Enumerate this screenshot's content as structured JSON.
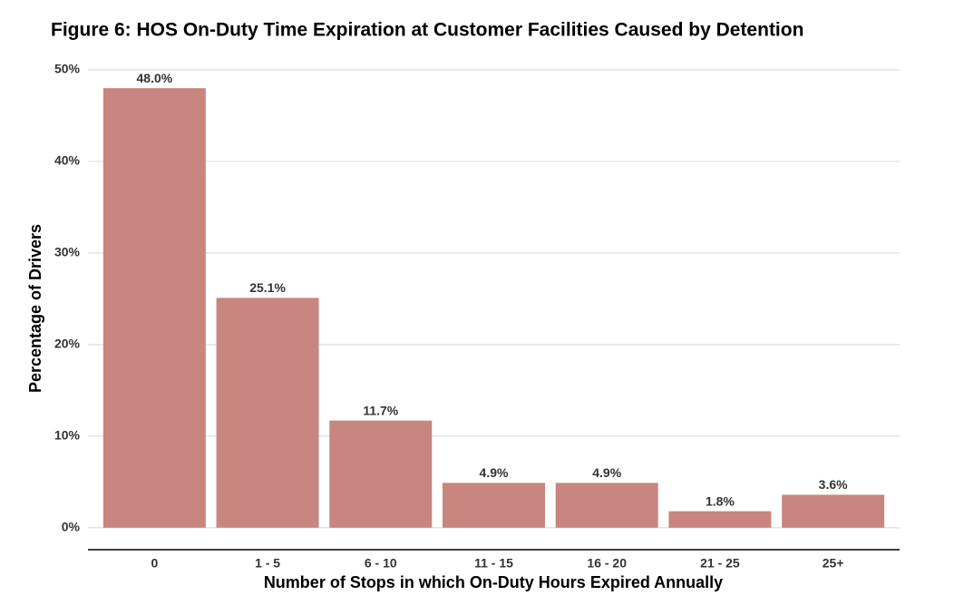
{
  "chart_data": {
    "type": "bar",
    "title": "Figure 6: HOS On-Duty Time Expiration at Customer Facilities Caused by Detention",
    "x_label": "Number of Stops in which On-Duty Hours Expired Annually",
    "y_label": "Percentage of Drivers",
    "categories": [
      "0",
      "1 - 5",
      "6 - 10",
      "11 - 15",
      "16 - 20",
      "21 - 25",
      "25+"
    ],
    "values": [
      48.0,
      25.1,
      11.7,
      4.9,
      4.9,
      1.8,
      3.6
    ],
    "value_labels": [
      "48.0%",
      "25.1%",
      "11.7%",
      "4.9%",
      "4.9%",
      "1.8%",
      "3.6%"
    ],
    "color": "#c98580",
    "ylim": [
      -2.4,
      50
    ],
    "yticks": [
      {
        "value": 0,
        "label": "0%"
      },
      {
        "value": 10,
        "label": "10%"
      },
      {
        "value": 20,
        "label": "20%"
      },
      {
        "value": 30,
        "label": "30%"
      },
      {
        "value": 40,
        "label": "40%"
      },
      {
        "value": 50,
        "label": "50%"
      }
    ],
    "grid": true
  }
}
